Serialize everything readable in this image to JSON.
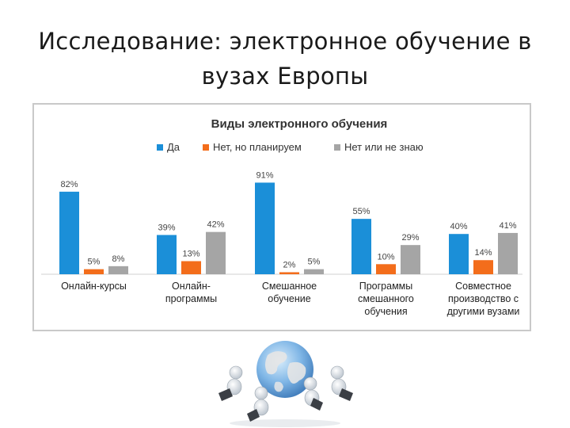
{
  "slide": {
    "title": "Исследование: электронное обучение в вузах Европы"
  },
  "chart_data": {
    "type": "bar",
    "title": "Виды электронного обучения",
    "categories": [
      [
        "Онлайн-курсы"
      ],
      [
        "Онлайн-",
        "программы"
      ],
      [
        "Смешанное",
        "обучение"
      ],
      [
        "Программы",
        "смешанного",
        "обучения"
      ],
      [
        "Совместное",
        "производство с",
        "другими вузами"
      ]
    ],
    "series": [
      {
        "name": "Да",
        "color": "#1b8fd8",
        "values": [
          82,
          39,
          91,
          55,
          40
        ]
      },
      {
        "name": "Нет, но планируем",
        "color": "#f36d1b",
        "values": [
          5,
          13,
          2,
          10,
          14
        ]
      },
      {
        "name": "Нет или не знаю",
        "color": "#a5a5a5",
        "values": [
          8,
          42,
          5,
          29,
          41
        ]
      }
    ],
    "value_suffix": "%",
    "ylim": [
      0,
      100
    ],
    "legend_position": "top",
    "grid": false
  },
  "illustration": {
    "icon": "globe-with-people-laptops-icon"
  }
}
